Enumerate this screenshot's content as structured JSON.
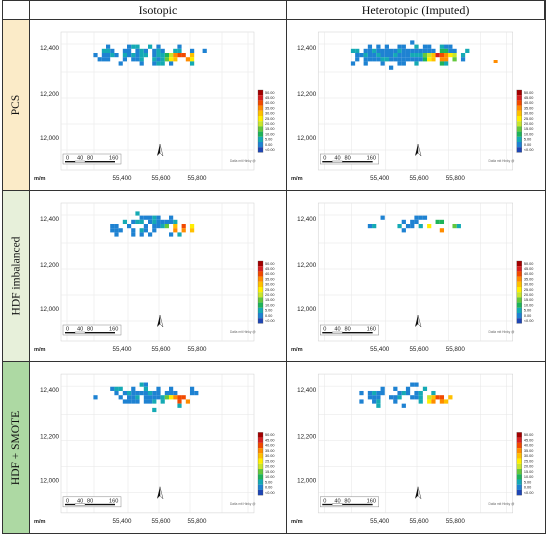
{
  "columns": [
    "Isotopic",
    "Heterotopic (Imputed)"
  ],
  "rows": [
    {
      "label": "PCS",
      "color": "#fbebc8"
    },
    {
      "label": "HDF imbalanced",
      "color": "#e7f0da"
    },
    {
      "label": "HDF + SMOTE",
      "color": "#add9a3"
    }
  ],
  "axes": {
    "y_ticks": [
      "12,400",
      "12,200",
      "12,000"
    ],
    "x_ticks": [
      "55,400",
      "55,600",
      "55,800"
    ],
    "unit": "m/m"
  },
  "scale_bar": {
    "labels": [
      "0",
      "40",
      "80",
      "160"
    ]
  },
  "attribution": "Datla mit Hinky @",
  "legend": {
    "labels": [
      "50.00",
      "45.00",
      "40.00",
      "35.00",
      "30.00",
      "25.00",
      "20.00",
      "15.00",
      "10.00",
      "5.00",
      "0.00",
      "<0.00"
    ],
    "colors": [
      "#a30000",
      "#d72020",
      "#f24a00",
      "#ff8c00",
      "#ffc000",
      "#ffee00",
      "#c8e62d",
      "#64c83c",
      "#1eb45a",
      "#14aab4",
      "#1e82d2",
      "#1e46b4"
    ]
  },
  "panels": [
    {
      "key": "pcs-iso",
      "seed": 11,
      "density": 0.82,
      "spread": 1.0,
      "extra_dot": false
    },
    {
      "key": "pcs-het",
      "seed": 23,
      "density": 0.95,
      "spread": 1.12,
      "extra_dot": true
    },
    {
      "key": "hdfi-iso",
      "seed": 37,
      "density": 0.55,
      "spread": 0.9,
      "extra_dot": false
    },
    {
      "key": "hdfi-het",
      "seed": 41,
      "density": 0.4,
      "spread": 0.95,
      "extra_dot": false
    },
    {
      "key": "hdfs-iso",
      "seed": 53,
      "density": 0.7,
      "spread": 0.95,
      "extra_dot": false
    },
    {
      "key": "hdfs-het",
      "seed": 67,
      "density": 0.5,
      "spread": 0.9,
      "extra_dot": false
    }
  ]
}
